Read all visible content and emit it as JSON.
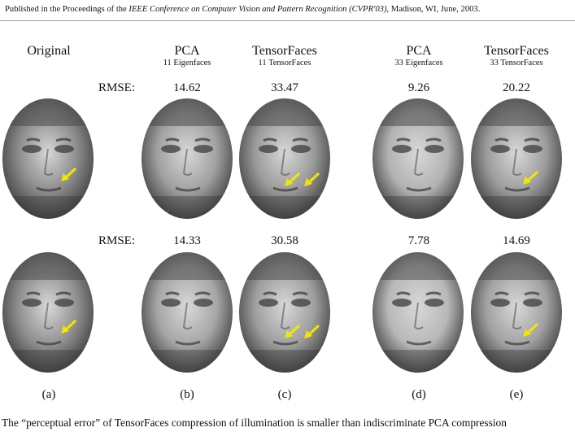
{
  "header": {
    "prefix": "Published in the Proceedings of the ",
    "venue": "IEEE Conference on Computer Vision and Pattern Recognition (CVPR'03)",
    "suffix": ", Madison, WI, June, 2003."
  },
  "columns": [
    {
      "title": "Original",
      "subtitle": "",
      "label": "(a)"
    },
    {
      "title": "PCA",
      "subtitle": "11 Eigenfaces",
      "label": "(b)"
    },
    {
      "title": "TensorFaces",
      "subtitle": "11 TensorFaces",
      "label": "(c)"
    },
    {
      "title": "PCA",
      "subtitle": "33 Eigenfaces",
      "label": "(d)"
    },
    {
      "title": "TensorFaces",
      "subtitle": "33 TensorFaces",
      "label": "(e)"
    }
  ],
  "rows": [
    {
      "rmse_label": "RMSE:",
      "rmse": [
        "14.62",
        "33.47",
        "9.26",
        "20.22"
      ]
    },
    {
      "rmse_label": "RMSE:",
      "rmse": [
        "14.33",
        "30.58",
        "7.78",
        "14.69"
      ]
    }
  ],
  "caption": "The “perceptual error” of TensorFaces compression of illumination is smaller than indiscriminate PCA compression",
  "colors": {
    "arrow": "#f2e600"
  }
}
